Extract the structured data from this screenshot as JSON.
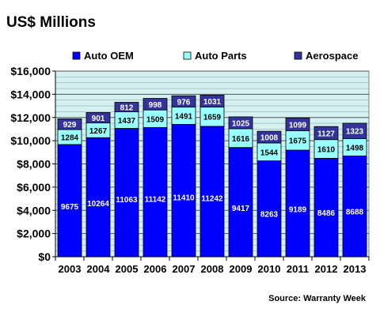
{
  "chart_data": {
    "type": "bar",
    "stacked": true,
    "title": "US$ Millions",
    "source": "Source: Warranty Week",
    "categories": [
      "2003",
      "2004",
      "2005",
      "2006",
      "2007",
      "2008",
      "2009",
      "2010",
      "2011",
      "2012",
      "2013"
    ],
    "series": [
      {
        "name": "Auto OEM",
        "color": "#0000ff",
        "label_color": "#ffffff",
        "values": [
          9675,
          10264,
          11063,
          11142,
          11410,
          11242,
          9417,
          8263,
          9189,
          8486,
          8688
        ]
      },
      {
        "name": "Auto Parts",
        "color": "#99ffff",
        "label_color": "#000000",
        "values": [
          1284,
          1267,
          1437,
          1509,
          1491,
          1659,
          1616,
          1544,
          1675,
          1610,
          1498
        ]
      },
      {
        "name": "Aerospace",
        "color": "#333399",
        "label_color": "#ffffff",
        "values": [
          929,
          901,
          812,
          998,
          976,
          1031,
          1025,
          1008,
          1099,
          1127,
          1323
        ]
      }
    ],
    "ylim": [
      0,
      16000
    ],
    "yticks": [
      0,
      2000,
      4000,
      6000,
      8000,
      10000,
      12000,
      14000,
      16000
    ],
    "ytick_labels": [
      "$0",
      "$2,000",
      "$4,000",
      "$6,000",
      "$8,000",
      "$10,000",
      "$12,000",
      "$14,000",
      "$16,000"
    ],
    "grid": true,
    "legend_position": "top",
    "plot_background": "#d4f0f0"
  }
}
